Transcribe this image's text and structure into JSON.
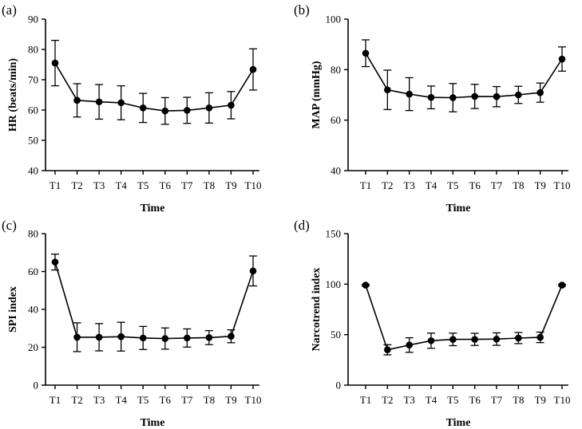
{
  "chart_data": [
    {
      "type": "line",
      "panel_label": "(a)",
      "xlabel": "Time",
      "ylabel": "HR (beats/min)",
      "ylim": [
        40,
        90
      ],
      "yticks": [
        40,
        50,
        60,
        70,
        80,
        90
      ],
      "categories": [
        "T1",
        "T2",
        "T3",
        "T4",
        "T5",
        "T6",
        "T7",
        "T8",
        "T9",
        "T10"
      ],
      "values": [
        75.5,
        63.2,
        62.7,
        62.4,
        60.7,
        59.7,
        59.9,
        60.7,
        61.6,
        73.4
      ],
      "errors": [
        7.5,
        5.5,
        5.7,
        5.6,
        4.8,
        4.4,
        4.3,
        5.0,
        4.5,
        6.8
      ]
    },
    {
      "type": "line",
      "panel_label": "(b)",
      "xlabel": "Time",
      "ylabel": "MAP (mmHg)",
      "ylim": [
        40,
        100
      ],
      "yticks": [
        40,
        60,
        80,
        100
      ],
      "categories": [
        "T1",
        "T2",
        "T3",
        "T4",
        "T5",
        "T6",
        "T7",
        "T8",
        "T9",
        "T10"
      ],
      "values": [
        86.5,
        72.0,
        70.3,
        69.0,
        68.9,
        69.4,
        69.3,
        70.0,
        70.9,
        84.2
      ],
      "errors": [
        5.3,
        7.8,
        6.5,
        4.5,
        5.6,
        4.8,
        4.0,
        3.4,
        3.8,
        4.8
      ]
    },
    {
      "type": "line",
      "panel_label": "(c)",
      "xlabel": "Time",
      "ylabel": "SPI index",
      "ylim": [
        0,
        80
      ],
      "yticks": [
        0,
        20,
        40,
        60,
        80
      ],
      "categories": [
        "T1",
        "T2",
        "T3",
        "T4",
        "T5",
        "T6",
        "T7",
        "T8",
        "T9",
        "T10"
      ],
      "values": [
        65.0,
        25.3,
        25.3,
        25.6,
        24.9,
        24.6,
        24.9,
        25.1,
        25.8,
        60.3
      ],
      "errors": [
        4.2,
        7.6,
        7.2,
        7.6,
        6.1,
        5.6,
        4.8,
        3.7,
        3.4,
        7.9
      ]
    },
    {
      "type": "line",
      "panel_label": "(d)",
      "xlabel": "Time",
      "ylabel": "Narcotrend index",
      "ylim": [
        0,
        150
      ],
      "yticks": [
        0,
        50,
        100,
        150
      ],
      "categories": [
        "T1",
        "T2",
        "T3",
        "T4",
        "T5",
        "T6",
        "T7",
        "T8",
        "T9",
        "T10"
      ],
      "values": [
        99.0,
        35.0,
        39.7,
        44.0,
        45.3,
        45.3,
        45.6,
        46.6,
        47.3,
        99.0
      ],
      "errors": [
        0.8,
        5.0,
        7.2,
        7.5,
        6.2,
        6.0,
        6.2,
        5.5,
        5.2,
        0.8
      ]
    }
  ]
}
